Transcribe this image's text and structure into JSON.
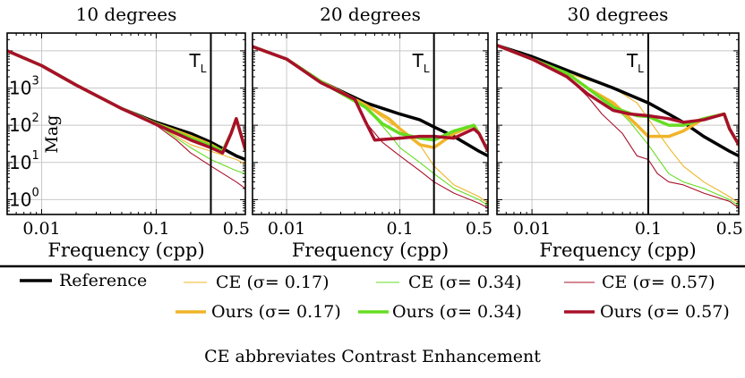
{
  "chart_data": [
    {
      "type": "line",
      "title": "10 degrees",
      "xlabel": "Frequency (cpp)",
      "ylabel": "Mag",
      "xscale": "log",
      "yscale": "log",
      "xlim": [
        0.005,
        0.6
      ],
      "ylim": [
        0.4,
        30000
      ],
      "xticks": [
        {
          "value": 0.01,
          "label": "0.01"
        },
        {
          "value": 0.1,
          "label": "0.1"
        },
        {
          "value": 0.5,
          "label": "0.5"
        }
      ],
      "yticks": [
        {
          "value": 1,
          "base": "10",
          "exp": "0"
        },
        {
          "value": 10,
          "base": "10",
          "exp": "1"
        },
        {
          "value": 100,
          "base": "10",
          "exp": "2"
        },
        {
          "value": 1000,
          "base": "10",
          "exp": "3"
        }
      ],
      "threshold": {
        "x": 0.3,
        "label": "T",
        "sub": "L"
      },
      "grid": true,
      "series": [
        {
          "name": "CE (σ= 0.17)",
          "x": [
            0.005,
            0.01,
            0.02,
            0.05,
            0.1,
            0.15,
            0.2,
            0.3,
            0.5,
            0.6
          ],
          "y": [
            10000,
            4000,
            1200,
            280,
            110,
            50,
            30,
            20,
            12,
            9
          ]
        },
        {
          "name": "CE (σ= 0.34)",
          "x": [
            0.005,
            0.01,
            0.02,
            0.05,
            0.1,
            0.15,
            0.2,
            0.3,
            0.5,
            0.6
          ],
          "y": [
            10000,
            4000,
            1200,
            280,
            110,
            45,
            25,
            12,
            6,
            5
          ]
        },
        {
          "name": "CE (σ= 0.57)",
          "x": [
            0.005,
            0.01,
            0.02,
            0.05,
            0.1,
            0.15,
            0.2,
            0.3,
            0.5,
            0.6
          ],
          "y": [
            10000,
            4000,
            1200,
            280,
            100,
            40,
            18,
            8,
            3,
            2
          ]
        },
        {
          "name": "Reference",
          "x": [
            0.005,
            0.01,
            0.02,
            0.05,
            0.1,
            0.15,
            0.2,
            0.3,
            0.5,
            0.6
          ],
          "y": [
            10000,
            4000,
            1200,
            280,
            120,
            80,
            60,
            35,
            15,
            12
          ]
        },
        {
          "name": "Ours (σ= 0.17)",
          "x": [
            0.005,
            0.01,
            0.02,
            0.05,
            0.1,
            0.15,
            0.2,
            0.3,
            0.38,
            0.45,
            0.5,
            0.6
          ],
          "y": [
            10000,
            4000,
            1200,
            280,
            110,
            70,
            50,
            30,
            20,
            60,
            150,
            22
          ]
        },
        {
          "name": "Ours (σ= 0.34)",
          "x": [
            0.005,
            0.01,
            0.02,
            0.05,
            0.1,
            0.15,
            0.2,
            0.3,
            0.38,
            0.45,
            0.5,
            0.6
          ],
          "y": [
            10000,
            4000,
            1200,
            280,
            110,
            65,
            45,
            28,
            20,
            60,
            150,
            22
          ]
        },
        {
          "name": "Ours (σ= 0.57)",
          "x": [
            0.005,
            0.01,
            0.02,
            0.05,
            0.1,
            0.15,
            0.2,
            0.3,
            0.38,
            0.45,
            0.5,
            0.6
          ],
          "y": [
            10000,
            4000,
            1200,
            280,
            105,
            60,
            40,
            25,
            18,
            60,
            150,
            22
          ]
        }
      ]
    },
    {
      "type": "line",
      "title": "20 degrees",
      "xlabel": "Frequency (cpp)",
      "ylabel": "",
      "xscale": "log",
      "yscale": "log",
      "xlim": [
        0.005,
        0.6
      ],
      "ylim": [
        0.4,
        30000
      ],
      "xticks": [
        {
          "value": 0.01,
          "label": "0.01"
        },
        {
          "value": 0.1,
          "label": "0.1"
        },
        {
          "value": 0.5,
          "label": "0.5"
        }
      ],
      "yticks": [],
      "threshold": {
        "x": 0.2,
        "label": "T",
        "sub": "L"
      },
      "grid": true,
      "series": [
        {
          "name": "CE (σ= 0.17)",
          "x": [
            0.005,
            0.01,
            0.02,
            0.05,
            0.08,
            0.1,
            0.15,
            0.2,
            0.3,
            0.5,
            0.6
          ],
          "y": [
            13000,
            6000,
            1500,
            350,
            120,
            80,
            30,
            8,
            2.5,
            1.2,
            0.8
          ]
        },
        {
          "name": "CE (σ= 0.34)",
          "x": [
            0.005,
            0.01,
            0.02,
            0.05,
            0.08,
            0.1,
            0.15,
            0.2,
            0.3,
            0.5,
            0.6
          ],
          "y": [
            13000,
            6000,
            1400,
            300,
            60,
            25,
            10,
            5,
            2,
            1,
            0.7
          ]
        },
        {
          "name": "CE (σ= 0.57)",
          "x": [
            0.005,
            0.01,
            0.02,
            0.04,
            0.05,
            0.07,
            0.1,
            0.15,
            0.2,
            0.3,
            0.5,
            0.6
          ],
          "y": [
            13000,
            6000,
            1400,
            500,
            120,
            35,
            15,
            6,
            3,
            1.5,
            0.8,
            0.6
          ]
        },
        {
          "name": "Reference",
          "x": [
            0.005,
            0.01,
            0.02,
            0.05,
            0.1,
            0.15,
            0.2,
            0.3,
            0.5,
            0.6
          ],
          "y": [
            13000,
            6000,
            1500,
            400,
            200,
            140,
            90,
            50,
            20,
            15
          ]
        },
        {
          "name": "Ours (σ= 0.17)",
          "x": [
            0.005,
            0.01,
            0.02,
            0.05,
            0.08,
            0.1,
            0.15,
            0.2,
            0.3,
            0.45,
            0.5,
            0.6
          ],
          "y": [
            13000,
            6000,
            1500,
            350,
            150,
            80,
            30,
            25,
            60,
            100,
            60,
            20
          ]
        },
        {
          "name": "Ours (σ= 0.34)",
          "x": [
            0.005,
            0.01,
            0.02,
            0.05,
            0.07,
            0.1,
            0.15,
            0.2,
            0.3,
            0.45,
            0.5,
            0.6
          ],
          "y": [
            13000,
            6000,
            1500,
            300,
            110,
            60,
            45,
            40,
            70,
            100,
            60,
            20
          ]
        },
        {
          "name": "Ours (σ= 0.57)",
          "x": [
            0.005,
            0.01,
            0.02,
            0.04,
            0.05,
            0.06,
            0.1,
            0.15,
            0.2,
            0.3,
            0.45,
            0.5,
            0.6
          ],
          "y": [
            13000,
            6000,
            1400,
            500,
            120,
            40,
            45,
            50,
            50,
            45,
            80,
            60,
            20
          ]
        }
      ]
    },
    {
      "type": "line",
      "title": "30 degrees",
      "xlabel": "Frequency (cpp)",
      "ylabel": "",
      "xscale": "log",
      "yscale": "log",
      "xlim": [
        0.005,
        0.6
      ],
      "ylim": [
        0.4,
        30000
      ],
      "xticks": [
        {
          "value": 0.01,
          "label": "0.01"
        },
        {
          "value": 0.1,
          "label": "0.1"
        },
        {
          "value": 0.5,
          "label": "0.5"
        }
      ],
      "yticks": [],
      "threshold": {
        "x": 0.1,
        "label": "T",
        "sub": "L"
      },
      "grid": true,
      "series": [
        {
          "name": "CE (σ= 0.17)",
          "x": [
            0.005,
            0.01,
            0.02,
            0.05,
            0.08,
            0.1,
            0.15,
            0.2,
            0.3,
            0.5,
            0.6
          ],
          "y": [
            14000,
            6000,
            2500,
            1000,
            400,
            150,
            25,
            8,
            3,
            1.2,
            0.8
          ]
        },
        {
          "name": "CE (σ= 0.34)",
          "x": [
            0.005,
            0.01,
            0.02,
            0.03,
            0.05,
            0.07,
            0.1,
            0.15,
            0.2,
            0.3,
            0.5,
            0.6
          ],
          "y": [
            14000,
            6000,
            2500,
            1000,
            350,
            120,
            30,
            5,
            3,
            2,
            1,
            0.7
          ]
        },
        {
          "name": "CE (σ= 0.57)",
          "x": [
            0.005,
            0.01,
            0.02,
            0.03,
            0.04,
            0.06,
            0.08,
            0.1,
            0.12,
            0.15,
            0.2,
            0.3,
            0.5,
            0.6
          ],
          "y": [
            14000,
            6000,
            2000,
            600,
            200,
            60,
            15,
            12,
            5,
            3,
            2.5,
            1.5,
            0.9,
            0.6
          ]
        },
        {
          "name": "Reference",
          "x": [
            0.005,
            0.01,
            0.02,
            0.05,
            0.1,
            0.15,
            0.2,
            0.3,
            0.5,
            0.6
          ],
          "y": [
            14000,
            7000,
            3000,
            1000,
            400,
            200,
            120,
            50,
            20,
            15
          ]
        },
        {
          "name": "Ours (σ= 0.17)",
          "x": [
            0.005,
            0.01,
            0.02,
            0.03,
            0.05,
            0.08,
            0.1,
            0.15,
            0.2,
            0.3,
            0.45,
            0.5,
            0.6
          ],
          "y": [
            14000,
            6000,
            2500,
            1000,
            400,
            100,
            50,
            50,
            70,
            150,
            200,
            80,
            30
          ]
        },
        {
          "name": "Ours (σ= 0.34)",
          "x": [
            0.005,
            0.01,
            0.02,
            0.03,
            0.05,
            0.08,
            0.1,
            0.15,
            0.2,
            0.3,
            0.45,
            0.5,
            0.6
          ],
          "y": [
            14000,
            6000,
            2500,
            1000,
            300,
            180,
            170,
            100,
            100,
            150,
            200,
            80,
            30
          ]
        },
        {
          "name": "Ours (σ= 0.57)",
          "x": [
            0.005,
            0.01,
            0.02,
            0.03,
            0.05,
            0.07,
            0.1,
            0.15,
            0.2,
            0.3,
            0.45,
            0.5,
            0.6
          ],
          "y": [
            14000,
            6000,
            2000,
            700,
            250,
            200,
            180,
            150,
            120,
            140,
            200,
            80,
            30
          ]
        }
      ]
    }
  ],
  "legend": {
    "items": [
      {
        "key": "Reference",
        "label": "Reference",
        "color": "#000000",
        "weight": "thick"
      },
      {
        "key": "CE (σ= 0.17)",
        "label": "CE (σ= 0.17)",
        "color": "#f0b429",
        "weight": "thin"
      },
      {
        "key": "CE (σ= 0.34)",
        "label": "CE (σ= 0.34)",
        "color": "#66dd22",
        "weight": "thin"
      },
      {
        "key": "CE (σ= 0.57)",
        "label": "CE (σ= 0.57)",
        "color": "#a8102a",
        "weight": "thin"
      },
      {
        "key": "Ours (σ= 0.17)",
        "label": "Ours (σ= 0.17)",
        "color": "#f0b429",
        "weight": "thick"
      },
      {
        "key": "Ours (σ= 0.34)",
        "label": "Ours (σ= 0.34)",
        "color": "#66dd22",
        "weight": "thick"
      },
      {
        "key": "Ours (σ= 0.57)",
        "label": "Ours (σ= 0.57)",
        "color": "#a8102a",
        "weight": "thick"
      }
    ]
  },
  "caption": "CE abbreviates Contrast Enhancement",
  "colors": {
    "reference": "#000000",
    "sigma_017": "#f0b429",
    "sigma_034": "#66dd22",
    "sigma_057": "#a8102a",
    "grid": "#c8c8c8"
  }
}
